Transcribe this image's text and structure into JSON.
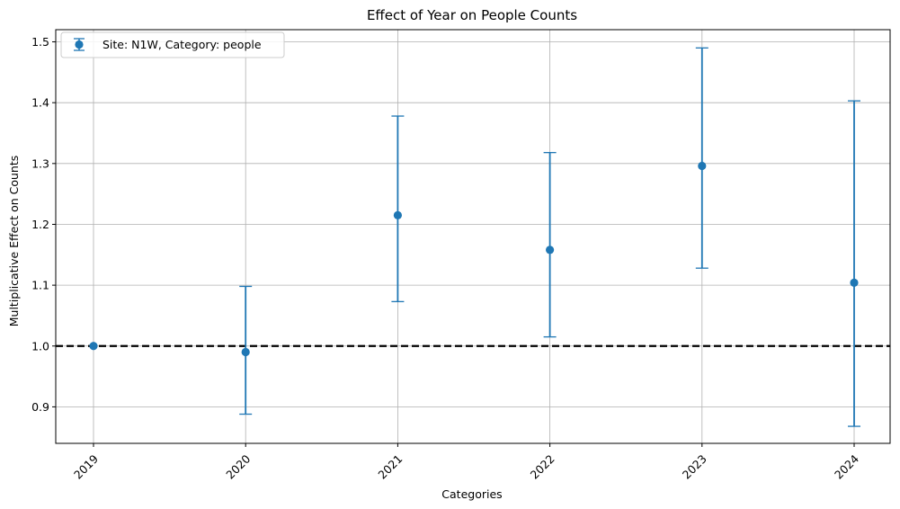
{
  "chart_data": {
    "type": "scatter",
    "title": "Effect of Year on People Counts",
    "xlabel": "Categories",
    "ylabel": "Multiplicative Effect on Counts",
    "categories": [
      "2019",
      "2020",
      "2021",
      "2022",
      "2023",
      "2024"
    ],
    "series": [
      {
        "name": "Site: N1W, Category: people",
        "color": "#1f77b4",
        "values": [
          1.0,
          0.99,
          1.215,
          1.158,
          1.296,
          1.104
        ],
        "lower": [
          1.0,
          0.888,
          1.073,
          1.015,
          1.128,
          0.868
        ],
        "upper": [
          1.0,
          1.098,
          1.378,
          1.318,
          1.49,
          1.403
        ]
      }
    ],
    "reference_line": {
      "y": 1.0,
      "style": "dashed",
      "color": "#000000"
    },
    "ylim": [
      0.84,
      1.52
    ],
    "yticks": [
      "0.9",
      "1.0",
      "1.1",
      "1.2",
      "1.3",
      "1.4",
      "1.5"
    ],
    "grid": true,
    "legend_position": "top-left",
    "xtick_rotation": 45
  }
}
